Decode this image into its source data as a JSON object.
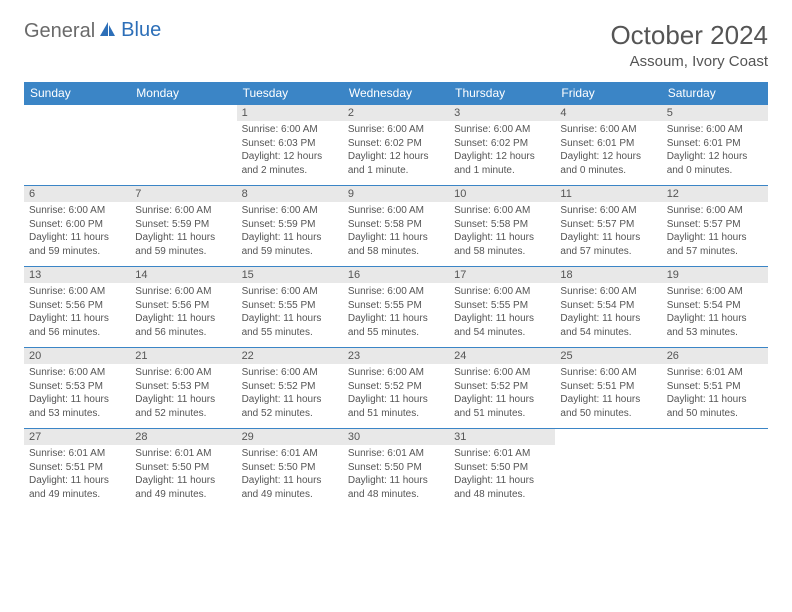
{
  "brand": {
    "part1": "General",
    "part2": "Blue"
  },
  "title": "October 2024",
  "location": "Assoum, Ivory Coast",
  "colors": {
    "header_bg": "#3b85c6",
    "header_text": "#ffffff",
    "daynum_bg": "#e8e8e8",
    "text": "#555555",
    "row_border": "#3b85c6",
    "logo_blue": "#2d6fb8"
  },
  "daysOfWeek": [
    "Sunday",
    "Monday",
    "Tuesday",
    "Wednesday",
    "Thursday",
    "Friday",
    "Saturday"
  ],
  "weeks": [
    [
      null,
      null,
      {
        "n": "1",
        "sr": "Sunrise: 6:00 AM",
        "ss": "Sunset: 6:03 PM",
        "dl": "Daylight: 12 hours and 2 minutes."
      },
      {
        "n": "2",
        "sr": "Sunrise: 6:00 AM",
        "ss": "Sunset: 6:02 PM",
        "dl": "Daylight: 12 hours and 1 minute."
      },
      {
        "n": "3",
        "sr": "Sunrise: 6:00 AM",
        "ss": "Sunset: 6:02 PM",
        "dl": "Daylight: 12 hours and 1 minute."
      },
      {
        "n": "4",
        "sr": "Sunrise: 6:00 AM",
        "ss": "Sunset: 6:01 PM",
        "dl": "Daylight: 12 hours and 0 minutes."
      },
      {
        "n": "5",
        "sr": "Sunrise: 6:00 AM",
        "ss": "Sunset: 6:01 PM",
        "dl": "Daylight: 12 hours and 0 minutes."
      }
    ],
    [
      {
        "n": "6",
        "sr": "Sunrise: 6:00 AM",
        "ss": "Sunset: 6:00 PM",
        "dl": "Daylight: 11 hours and 59 minutes."
      },
      {
        "n": "7",
        "sr": "Sunrise: 6:00 AM",
        "ss": "Sunset: 5:59 PM",
        "dl": "Daylight: 11 hours and 59 minutes."
      },
      {
        "n": "8",
        "sr": "Sunrise: 6:00 AM",
        "ss": "Sunset: 5:59 PM",
        "dl": "Daylight: 11 hours and 59 minutes."
      },
      {
        "n": "9",
        "sr": "Sunrise: 6:00 AM",
        "ss": "Sunset: 5:58 PM",
        "dl": "Daylight: 11 hours and 58 minutes."
      },
      {
        "n": "10",
        "sr": "Sunrise: 6:00 AM",
        "ss": "Sunset: 5:58 PM",
        "dl": "Daylight: 11 hours and 58 minutes."
      },
      {
        "n": "11",
        "sr": "Sunrise: 6:00 AM",
        "ss": "Sunset: 5:57 PM",
        "dl": "Daylight: 11 hours and 57 minutes."
      },
      {
        "n": "12",
        "sr": "Sunrise: 6:00 AM",
        "ss": "Sunset: 5:57 PM",
        "dl": "Daylight: 11 hours and 57 minutes."
      }
    ],
    [
      {
        "n": "13",
        "sr": "Sunrise: 6:00 AM",
        "ss": "Sunset: 5:56 PM",
        "dl": "Daylight: 11 hours and 56 minutes."
      },
      {
        "n": "14",
        "sr": "Sunrise: 6:00 AM",
        "ss": "Sunset: 5:56 PM",
        "dl": "Daylight: 11 hours and 56 minutes."
      },
      {
        "n": "15",
        "sr": "Sunrise: 6:00 AM",
        "ss": "Sunset: 5:55 PM",
        "dl": "Daylight: 11 hours and 55 minutes."
      },
      {
        "n": "16",
        "sr": "Sunrise: 6:00 AM",
        "ss": "Sunset: 5:55 PM",
        "dl": "Daylight: 11 hours and 55 minutes."
      },
      {
        "n": "17",
        "sr": "Sunrise: 6:00 AM",
        "ss": "Sunset: 5:55 PM",
        "dl": "Daylight: 11 hours and 54 minutes."
      },
      {
        "n": "18",
        "sr": "Sunrise: 6:00 AM",
        "ss": "Sunset: 5:54 PM",
        "dl": "Daylight: 11 hours and 54 minutes."
      },
      {
        "n": "19",
        "sr": "Sunrise: 6:00 AM",
        "ss": "Sunset: 5:54 PM",
        "dl": "Daylight: 11 hours and 53 minutes."
      }
    ],
    [
      {
        "n": "20",
        "sr": "Sunrise: 6:00 AM",
        "ss": "Sunset: 5:53 PM",
        "dl": "Daylight: 11 hours and 53 minutes."
      },
      {
        "n": "21",
        "sr": "Sunrise: 6:00 AM",
        "ss": "Sunset: 5:53 PM",
        "dl": "Daylight: 11 hours and 52 minutes."
      },
      {
        "n": "22",
        "sr": "Sunrise: 6:00 AM",
        "ss": "Sunset: 5:52 PM",
        "dl": "Daylight: 11 hours and 52 minutes."
      },
      {
        "n": "23",
        "sr": "Sunrise: 6:00 AM",
        "ss": "Sunset: 5:52 PM",
        "dl": "Daylight: 11 hours and 51 minutes."
      },
      {
        "n": "24",
        "sr": "Sunrise: 6:00 AM",
        "ss": "Sunset: 5:52 PM",
        "dl": "Daylight: 11 hours and 51 minutes."
      },
      {
        "n": "25",
        "sr": "Sunrise: 6:00 AM",
        "ss": "Sunset: 5:51 PM",
        "dl": "Daylight: 11 hours and 50 minutes."
      },
      {
        "n": "26",
        "sr": "Sunrise: 6:01 AM",
        "ss": "Sunset: 5:51 PM",
        "dl": "Daylight: 11 hours and 50 minutes."
      }
    ],
    [
      {
        "n": "27",
        "sr": "Sunrise: 6:01 AM",
        "ss": "Sunset: 5:51 PM",
        "dl": "Daylight: 11 hours and 49 minutes."
      },
      {
        "n": "28",
        "sr": "Sunrise: 6:01 AM",
        "ss": "Sunset: 5:50 PM",
        "dl": "Daylight: 11 hours and 49 minutes."
      },
      {
        "n": "29",
        "sr": "Sunrise: 6:01 AM",
        "ss": "Sunset: 5:50 PM",
        "dl": "Daylight: 11 hours and 49 minutes."
      },
      {
        "n": "30",
        "sr": "Sunrise: 6:01 AM",
        "ss": "Sunset: 5:50 PM",
        "dl": "Daylight: 11 hours and 48 minutes."
      },
      {
        "n": "31",
        "sr": "Sunrise: 6:01 AM",
        "ss": "Sunset: 5:50 PM",
        "dl": "Daylight: 11 hours and 48 minutes."
      },
      null,
      null
    ]
  ]
}
